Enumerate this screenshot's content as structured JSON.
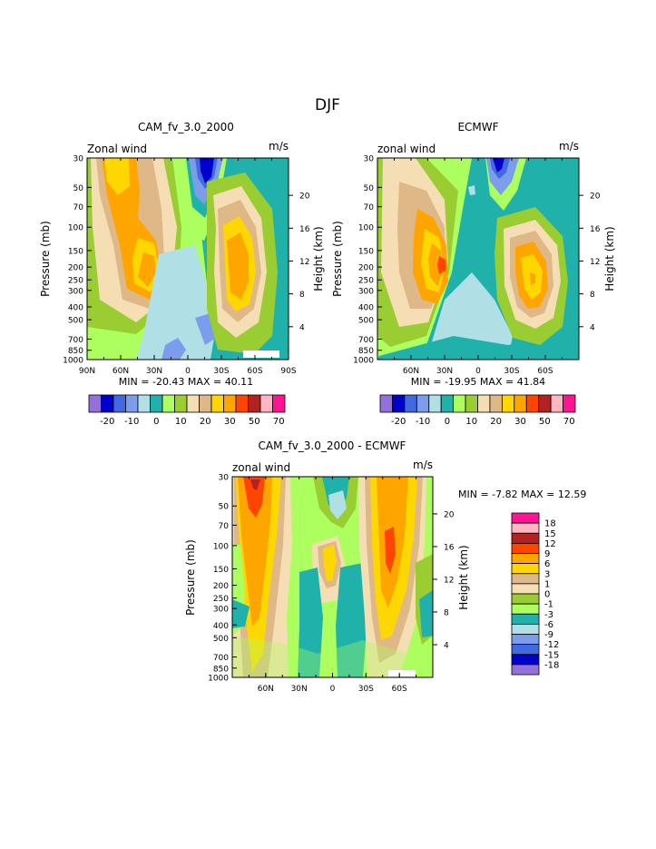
{
  "page": {
    "title": "DJF"
  },
  "colors": {
    "top_palette": [
      "#9370DB",
      "#0000CD",
      "#4169E1",
      "#7B9DEB",
      "#B0E0E6",
      "#20B2AA",
      "#ADFF5F",
      "#9ACD32",
      "#F5DEB3",
      "#DEB887",
      "#FFD700",
      "#FFA500",
      "#FF4500",
      "#B22222",
      "#FFB6C1",
      "#FF1493"
    ],
    "diff_palette": [
      "#9370DB",
      "#0000CD",
      "#4169E1",
      "#7B9DEB",
      "#B0E0E6",
      "#20B2AA",
      "#ADFF5F",
      "#9ACD32",
      "#F5DEB3",
      "#DEB887",
      "#FFD700",
      "#FFA500",
      "#FF4500",
      "#B22222",
      "#FFB6C1",
      "#FF1493"
    ]
  },
  "chart_data": [
    {
      "type": "heatmap",
      "title": "CAM_fv_3.0_2000",
      "subtitle_left": "Zonal wind",
      "subtitle_right": "m/s",
      "ylabel": "Pressure (mb)",
      "ylabel_right": "Height (km)",
      "pressure_ticks": [
        "30",
        "50",
        "70",
        "100",
        "150",
        "200",
        "250",
        "300",
        "400",
        "500",
        "700",
        "850",
        "1000"
      ],
      "height_ticks": [
        "20",
        "16",
        "12",
        "8",
        "4"
      ],
      "x_ticks": [
        "90N",
        "60N",
        "30N",
        "0",
        "30S",
        "60S",
        "90S"
      ],
      "stats": "MIN = -20.43   MAX =  40.11",
      "colorbar_labels": [
        "-20",
        "-10",
        "0",
        "10",
        "20",
        "30",
        "50",
        "70"
      ]
    },
    {
      "type": "heatmap",
      "title": "ECMWF",
      "subtitle_left": "zonal wind",
      "subtitle_right": "m/s",
      "ylabel": "Pressure (mb)",
      "ylabel_right": "Height (km)",
      "pressure_ticks": [
        "30",
        "50",
        "70",
        "100",
        "150",
        "200",
        "250",
        "300",
        "400",
        "500",
        "700",
        "850",
        "1000"
      ],
      "height_ticks": [
        "20",
        "16",
        "12",
        "8",
        "4"
      ],
      "x_ticks": [
        "60N",
        "30N",
        "0",
        "30S",
        "60S"
      ],
      "stats": "MIN = -19.95   MAX =  41.84",
      "colorbar_labels": [
        "-20",
        "-10",
        "0",
        "10",
        "20",
        "30",
        "50",
        "70"
      ]
    },
    {
      "type": "heatmap",
      "title": "CAM_fv_3.0_2000 - ECMWF",
      "subtitle_left": "zonal wind",
      "subtitle_right": "m/s",
      "ylabel": "Pressure (mb)",
      "ylabel_right": "Height (km)",
      "pressure_ticks": [
        "30",
        "50",
        "70",
        "100",
        "150",
        "200",
        "250",
        "300",
        "400",
        "500",
        "700",
        "850",
        "1000"
      ],
      "height_ticks": [
        "20",
        "16",
        "12",
        "8",
        "4"
      ],
      "x_ticks": [
        "60N",
        "30N",
        "0",
        "30S",
        "60S"
      ],
      "stats": "MIN =  -7.82   MAX =  12.59",
      "colorbar_labels": [
        "18",
        "15",
        "12",
        "9",
        "6",
        "3",
        "1",
        "0",
        "-1",
        "-3",
        "-6",
        "-9",
        "-12",
        "-15",
        "-18"
      ]
    }
  ]
}
